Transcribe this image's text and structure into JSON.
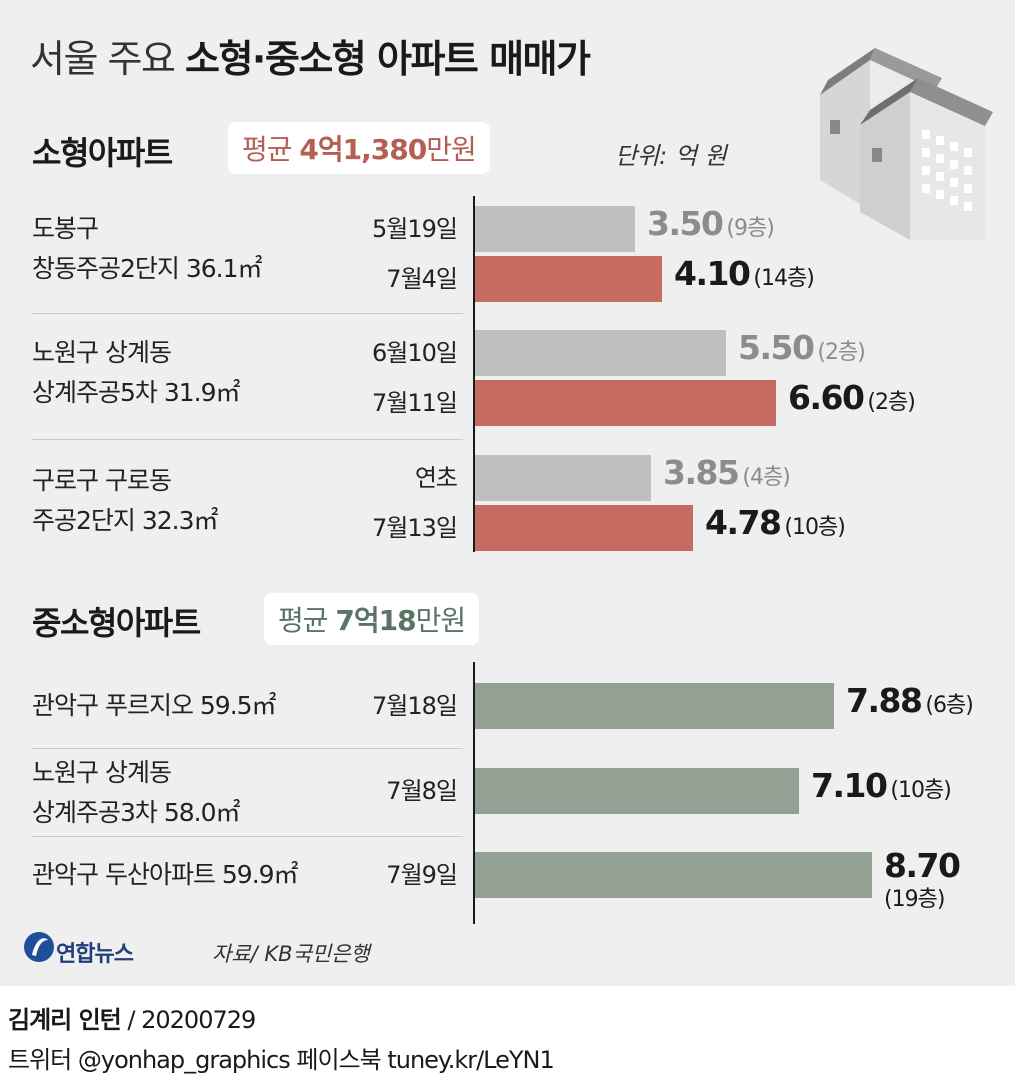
{
  "title": {
    "light": "서울 주요",
    "bold": "소형·중소형 아파트 매매가"
  },
  "unit": "단위: 억 원",
  "colors": {
    "before": "#bfbfbf",
    "after": "#c56b62",
    "mid": "#93a195",
    "before_text": "#8c8c8c",
    "after_text": "#1a1a1a",
    "small_avg": "#b35f54",
    "mid_avg": "#5a7466"
  },
  "sections": {
    "small": {
      "title": "소형아파트",
      "avg_prefix": "평균 ",
      "avg_value": "4억1,380",
      "avg_suffix": "만원"
    },
    "mid": {
      "title": "중소형아파트",
      "avg_prefix": "평균 ",
      "avg_value": "7억18",
      "avg_suffix": "만원"
    }
  },
  "chart_data": [
    {
      "type": "bar",
      "orientation": "horizontal",
      "title": "소형아파트",
      "unit": "억 원",
      "groups": [
        {
          "name_lines": [
            "도봉구",
            "창동주공2단지 36.1㎡"
          ],
          "entries": [
            {
              "date": "5월19일",
              "value": 3.5,
              "label": "3.50",
              "floor": "(9층)",
              "kind": "before"
            },
            {
              "date": "7월4일",
              "value": 4.1,
              "label": "4.10",
              "floor": "(14층)",
              "kind": "after"
            }
          ]
        },
        {
          "name_lines": [
            "노원구 상계동",
            "상계주공5차 31.9㎡"
          ],
          "entries": [
            {
              "date": "6월10일",
              "value": 5.5,
              "label": "5.50",
              "floor": "(2층)",
              "kind": "before"
            },
            {
              "date": "7월11일",
              "value": 6.6,
              "label": "6.60",
              "floor": "(2층)",
              "kind": "after"
            }
          ]
        },
        {
          "name_lines": [
            "구로구 구로동",
            "주공2단지 32.3㎡"
          ],
          "entries": [
            {
              "date": "연초",
              "value": 3.85,
              "label": "3.85",
              "floor": "(4층)",
              "kind": "before"
            },
            {
              "date": "7월13일",
              "value": 4.78,
              "label": "4.78",
              "floor": "(10층)",
              "kind": "after"
            }
          ]
        }
      ]
    },
    {
      "type": "bar",
      "orientation": "horizontal",
      "title": "중소형아파트",
      "unit": "억 원",
      "groups": [
        {
          "name_lines": [
            "관악구 푸르지오 59.5㎡"
          ],
          "entries": [
            {
              "date": "7월18일",
              "value": 7.88,
              "label": "7.88",
              "floor": "(6층)",
              "kind": "mid"
            }
          ]
        },
        {
          "name_lines": [
            "노원구 상계동",
            "상계주공3차 58.0㎡"
          ],
          "entries": [
            {
              "date": "7월8일",
              "value": 7.1,
              "label": "7.10",
              "floor": "(10층)",
              "kind": "mid"
            }
          ]
        },
        {
          "name_lines": [
            "관악구 두산아파트 59.9㎡"
          ],
          "entries": [
            {
              "date": "7월9일",
              "value": 8.7,
              "label": "8.70",
              "floor": "(19층)",
              "kind": "mid"
            }
          ]
        }
      ]
    }
  ],
  "source": "자료/ KB국민은행",
  "logo_text": "연합뉴스",
  "credit": {
    "author": "김계리 인턴",
    "date": " / 20200729"
  },
  "sns": "트위터 @yonhap_graphics  페이스북 tuney.kr/LeYN1"
}
